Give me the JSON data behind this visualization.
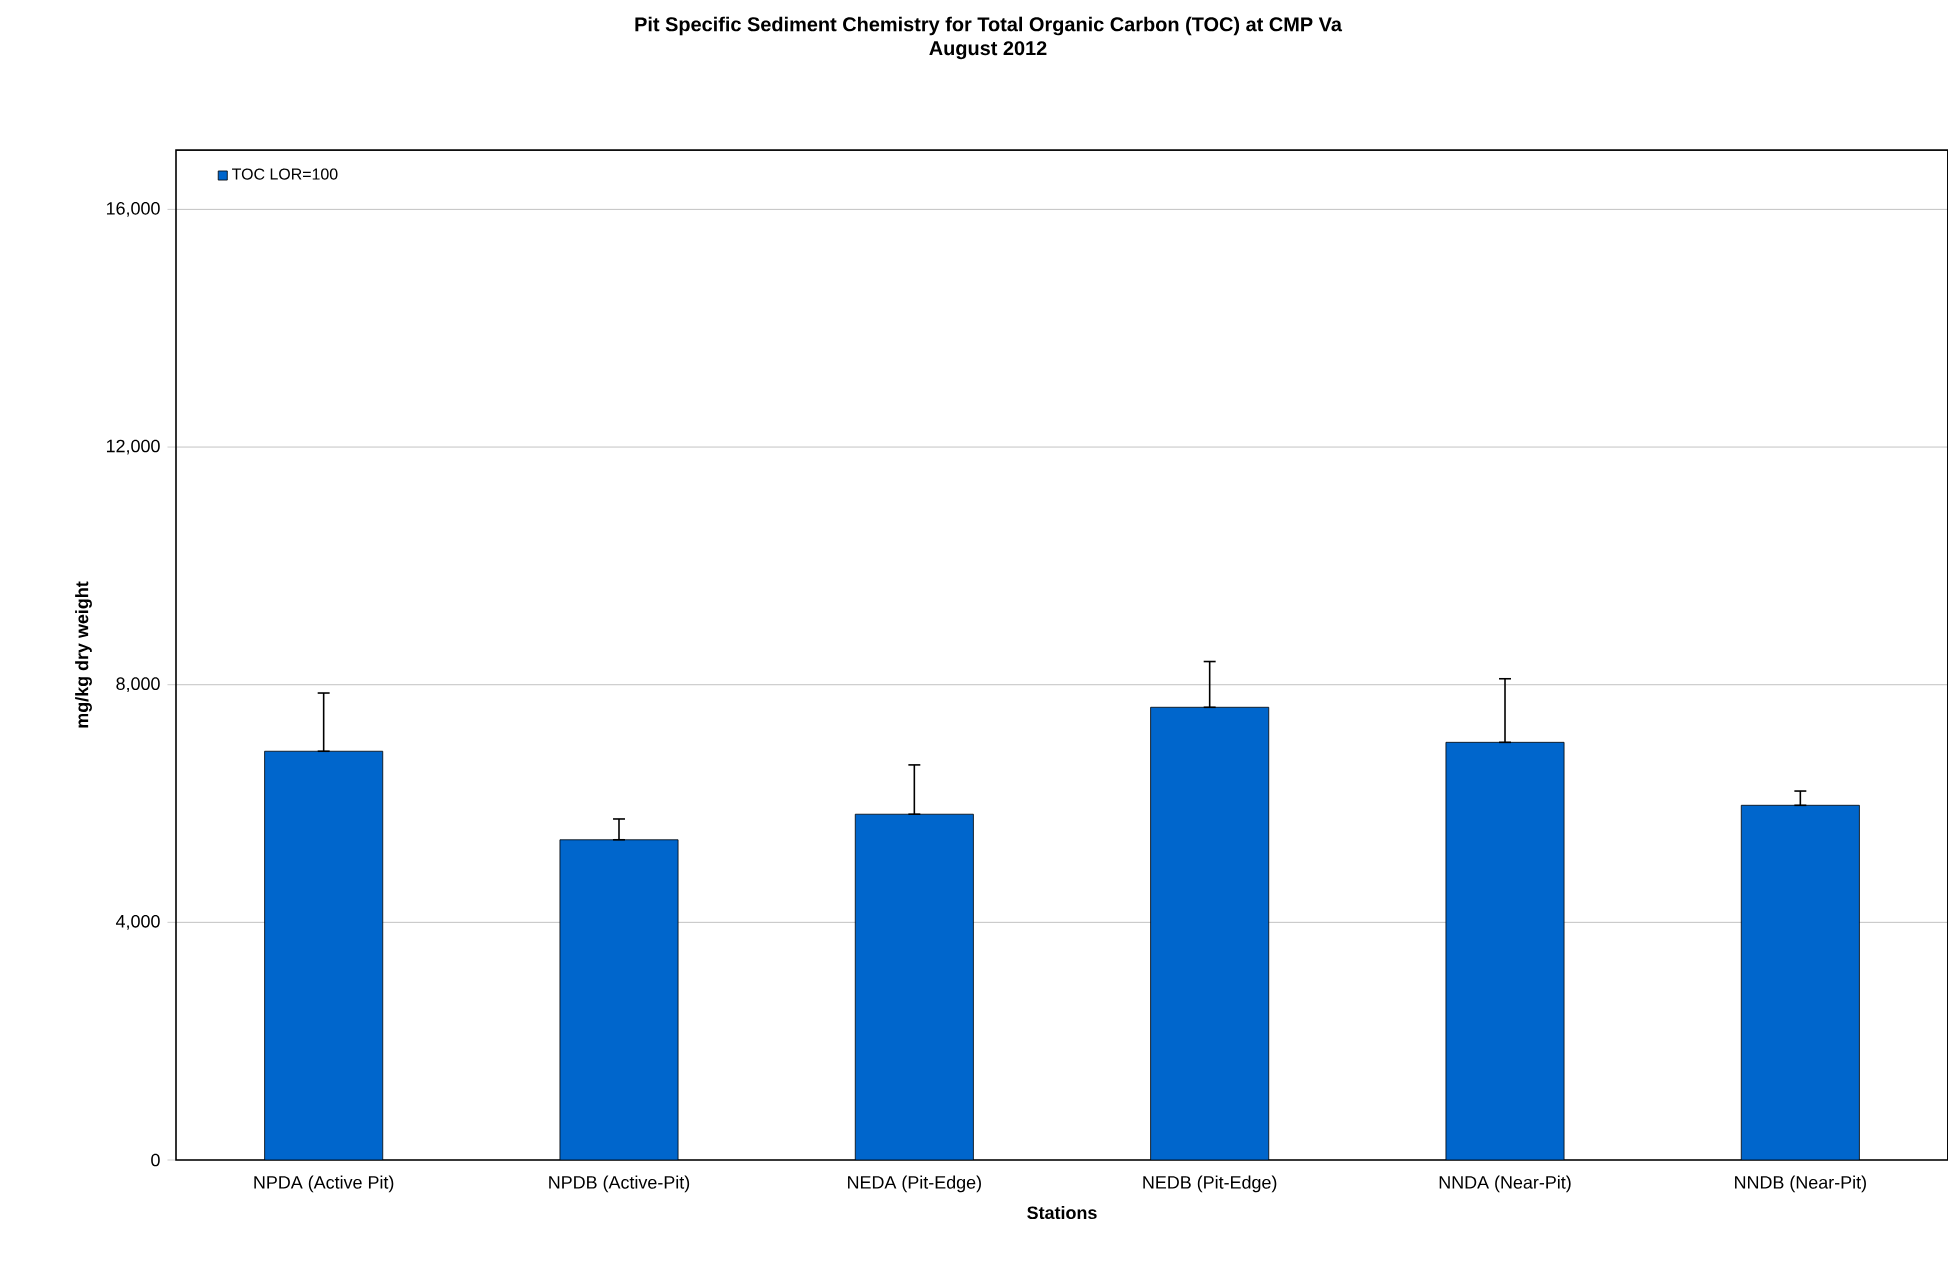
{
  "chart_data": {
    "type": "bar",
    "title": "Pit Specific Sediment Chemistry for Total Organic Carbon (TOC) at CMP Va",
    "subtitle": "August 2012",
    "xlabel": "Stations",
    "ylabel": "mg/kg dry weight",
    "categories": [
      "NPDA (Active Pit)",
      "NPDB (Active-Pit)",
      "NEDA (Pit-Edge)",
      "NEDB (Pit-Edge)",
      "NNDA (Near-Pit)",
      "NNDB (Near-Pit)"
    ],
    "series": [
      {
        "name": "TOC LOR=100",
        "color": "#0066cc",
        "values": [
          6880,
          5390,
          5820,
          7620,
          7030,
          5970
        ],
        "errors": [
          [
            6880,
            7860
          ],
          [
            5390,
            5740
          ],
          [
            5820,
            6650
          ],
          [
            7620,
            8390
          ],
          [
            7030,
            8100
          ],
          [
            5970,
            6210
          ]
        ]
      }
    ],
    "ylim": [
      0,
      17000
    ],
    "yticks": [
      {
        "value": 0,
        "label": "0"
      },
      {
        "value": 4000,
        "label": "4,000"
      },
      {
        "value": 8000,
        "label": "8,000"
      },
      {
        "value": 12000,
        "label": "12,000"
      },
      {
        "value": 16000,
        "label": "16,000"
      }
    ],
    "grid": "y",
    "legend": "top left"
  }
}
